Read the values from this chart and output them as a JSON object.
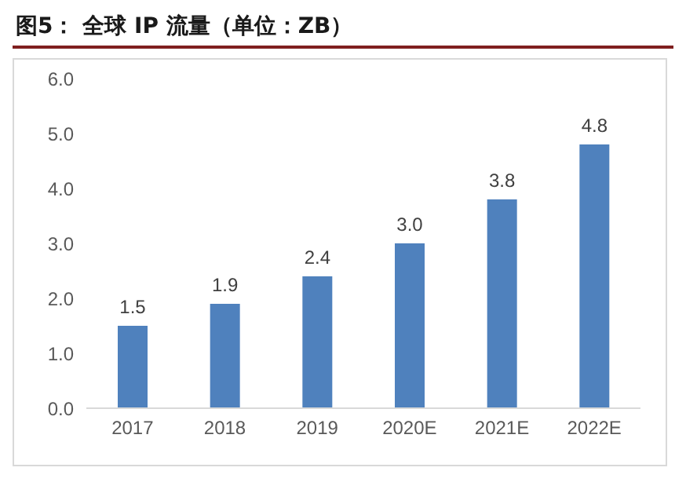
{
  "chart_data": {
    "type": "bar",
    "title": "图5：   全球 IP 流量（单位：ZB）",
    "categories": [
      "2017",
      "2018",
      "2019",
      "2020E",
      "2021E",
      "2022E"
    ],
    "values": [
      1.5,
      1.9,
      2.4,
      3.0,
      3.8,
      4.8
    ],
    "color": "#4f81bd",
    "ylim": [
      0,
      6
    ],
    "yticks": [
      {
        "value": 0,
        "label": "0.0"
      },
      {
        "value": 1,
        "label": "1.0"
      },
      {
        "value": 2,
        "label": "2.0"
      },
      {
        "value": 3,
        "label": "3.0"
      },
      {
        "value": 4,
        "label": "4.0"
      },
      {
        "value": 5,
        "label": "5.0"
      },
      {
        "value": 6,
        "label": "6.0"
      }
    ],
    "value_labels": [
      "1.5",
      "1.9",
      "2.4",
      "3.0",
      "3.8",
      "4.8"
    ],
    "grid": false,
    "legend": false
  }
}
